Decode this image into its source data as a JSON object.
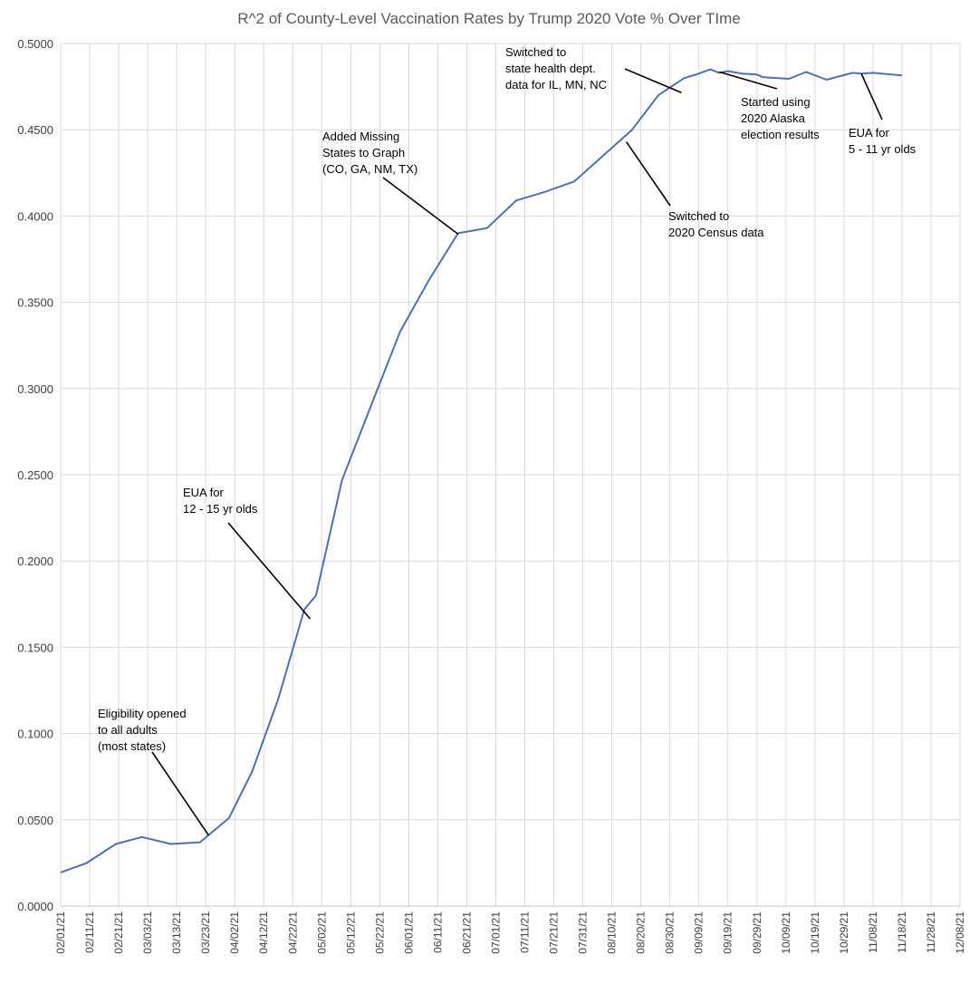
{
  "colors": {
    "series": "#4a72b0",
    "grid": "#d9d9d9",
    "text": "#404040",
    "title": "#595959"
  },
  "chart_data": {
    "type": "line",
    "title": "R^2 of County-Level Vaccination Rates by Trump 2020 Vote % Over TIme",
    "xlabel": "",
    "ylabel": "",
    "x_axis": "date",
    "xlim": [
      "2021-02-01",
      "2021-12-08"
    ],
    "ylim": [
      0,
      0.5
    ],
    "grid": true,
    "legend": "none",
    "y_ticks": [
      "0.0000",
      "0.0500",
      "0.1000",
      "0.1500",
      "0.2000",
      "0.2500",
      "0.3000",
      "0.3500",
      "0.4000",
      "0.4500",
      "0.5000"
    ],
    "x_ticks": [
      "02/01/21",
      "02/11/21",
      "02/21/21",
      "03/03/21",
      "03/13/21",
      "03/23/21",
      "04/02/21",
      "04/12/21",
      "04/22/21",
      "05/02/21",
      "05/12/21",
      "05/22/21",
      "06/01/21",
      "06/11/21",
      "06/21/21",
      "07/01/21",
      "07/11/21",
      "07/21/21",
      "07/31/21",
      "08/10/21",
      "08/20/21",
      "08/30/21",
      "09/09/21",
      "09/19/21",
      "09/29/21",
      "10/09/21",
      "10/19/21",
      "10/29/21",
      "11/08/21",
      "11/18/21",
      "11/28/21",
      "12/08/21"
    ],
    "series": [
      {
        "x": [
          "2021-02-01",
          "2021-02-10",
          "2021-02-20",
          "2021-03-01",
          "2021-03-11",
          "2021-03-21",
          "2021-03-31",
          "2021-04-08",
          "2021-04-17",
          "2021-04-26",
          "2021-04-30",
          "2021-05-09",
          "2021-05-19",
          "2021-05-29",
          "2021-06-08",
          "2021-06-18",
          "2021-06-28",
          "2021-07-08",
          "2021-07-18",
          "2021-07-28",
          "2021-08-07",
          "2021-08-17",
          "2021-08-26",
          "2021-09-04",
          "2021-09-08",
          "2021-09-13",
          "2021-09-16",
          "2021-09-19",
          "2021-09-24",
          "2021-09-29",
          "2021-10-01",
          "2021-10-10",
          "2021-10-16",
          "2021-10-23",
          "2021-11-01",
          "2021-11-04",
          "2021-11-08",
          "2021-11-18"
        ],
        "y": [
          0.0195,
          0.025,
          0.036,
          0.04,
          0.036,
          0.037,
          0.051,
          0.078,
          0.12,
          0.172,
          0.18,
          0.247,
          0.29,
          0.333,
          0.363,
          0.39,
          0.393,
          0.409,
          0.414,
          0.42,
          0.435,
          0.45,
          0.47,
          0.48,
          0.482,
          0.485,
          0.483,
          0.484,
          0.4825,
          0.482,
          0.4805,
          0.4795,
          0.4835,
          0.479,
          0.483,
          0.4825,
          0.483,
          0.4815
        ]
      }
    ],
    "annotations": [
      {
        "lines": [
          "Eligibility opened",
          "to all adults",
          "(most states)"
        ],
        "x": "2021-03-24",
        "y": 0.041
      },
      {
        "lines": [
          "EUA for",
          "12 - 15 yr olds"
        ],
        "x": "2021-04-28",
        "y": 0.1665
      },
      {
        "lines": [
          "Added Missing",
          "States to Graph",
          "(CO, GA, NM, TX)"
        ],
        "x": "2021-06-18",
        "y": 0.3895
      },
      {
        "lines": [
          "Switched to",
          "state health dept.",
          "data for IL, MN, NC"
        ],
        "x": "2021-09-03",
        "y": 0.4715
      },
      {
        "lines": [
          "Started using",
          "2020 Alaska",
          "election results"
        ],
        "x": "2021-09-16",
        "y": 0.4835
      },
      {
        "lines": [
          "Switched to",
          "2020 Census data"
        ],
        "x": "2021-08-15",
        "y": 0.443
      },
      {
        "lines": [
          "EUA for",
          "5 - 11 yr olds"
        ],
        "x": "2021-11-04",
        "y": 0.4825
      }
    ]
  }
}
